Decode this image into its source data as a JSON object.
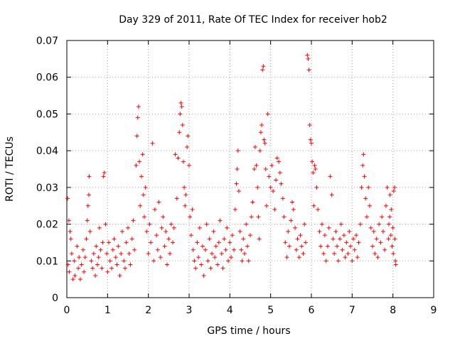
{
  "chart_data": {
    "type": "scatter",
    "title": "Day 329 of 2011, Rate Of TEC Index for receiver hob2",
    "xlabel": "GPS time / hours",
    "ylabel": "ROTI / TECUs",
    "xlim": [
      0,
      9
    ],
    "ylim": [
      0,
      0.07
    ],
    "xticks": [
      "0",
      "1",
      "2",
      "3",
      "4",
      "5",
      "6",
      "7",
      "8",
      "9"
    ],
    "yticks": [
      "0",
      "0.01",
      "0.02",
      "0.03",
      "0.04",
      "0.05",
      "0.06",
      "0.07"
    ],
    "grid": true,
    "marker": "+",
    "color": "#ff0000",
    "points": [
      [
        0.02,
        0.027
      ],
      [
        0.05,
        0.021
      ],
      [
        0.08,
        0.018
      ],
      [
        0.1,
        0.016
      ],
      [
        0.03,
        0.009
      ],
      [
        0.06,
        0.007
      ],
      [
        0.12,
        0.012
      ],
      [
        0.15,
        0.005
      ],
      [
        0.18,
        0.01
      ],
      [
        0.2,
        0.006
      ],
      [
        0.25,
        0.014
      ],
      [
        0.28,
        0.008
      ],
      [
        0.3,
        0.011
      ],
      [
        0.33,
        0.005
      ],
      [
        0.36,
        0.009
      ],
      [
        0.4,
        0.013
      ],
      [
        0.42,
        0.007
      ],
      [
        0.45,
        0.011
      ],
      [
        0.48,
        0.016
      ],
      [
        0.5,
        0.021
      ],
      [
        0.52,
        0.025
      ],
      [
        0.54,
        0.028
      ],
      [
        0.55,
        0.033
      ],
      [
        0.57,
        0.018
      ],
      [
        0.6,
        0.01
      ],
      [
        0.63,
        0.008
      ],
      [
        0.66,
        0.012
      ],
      [
        0.7,
        0.006
      ],
      [
        0.72,
        0.014
      ],
      [
        0.75,
        0.009
      ],
      [
        0.78,
        0.011
      ],
      [
        0.8,
        0.019
      ],
      [
        0.83,
        0.013
      ],
      [
        0.86,
        0.008
      ],
      [
        0.88,
        0.015
      ],
      [
        0.9,
        0.033
      ],
      [
        0.92,
        0.034
      ],
      [
        0.95,
        0.02
      ],
      [
        0.98,
        0.012
      ],
      [
        1.0,
        0.007
      ],
      [
        1.03,
        0.015
      ],
      [
        1.06,
        0.01
      ],
      [
        1.1,
        0.008
      ],
      [
        1.13,
        0.013
      ],
      [
        1.16,
        0.016
      ],
      [
        1.2,
        0.011
      ],
      [
        1.23,
        0.009
      ],
      [
        1.26,
        0.014
      ],
      [
        1.3,
        0.006
      ],
      [
        1.33,
        0.012
      ],
      [
        1.36,
        0.018
      ],
      [
        1.4,
        0.01
      ],
      [
        1.43,
        0.008
      ],
      [
        1.46,
        0.015
      ],
      [
        1.5,
        0.019
      ],
      [
        1.53,
        0.012
      ],
      [
        1.56,
        0.009
      ],
      [
        1.6,
        0.016
      ],
      [
        1.63,
        0.021
      ],
      [
        1.66,
        0.013
      ],
      [
        1.7,
        0.036
      ],
      [
        1.72,
        0.044
      ],
      [
        1.74,
        0.049
      ],
      [
        1.76,
        0.052
      ],
      [
        1.78,
        0.037
      ],
      [
        1.8,
        0.025
      ],
      [
        1.83,
        0.033
      ],
      [
        1.86,
        0.039
      ],
      [
        1.88,
        0.028
      ],
      [
        1.9,
        0.022
      ],
      [
        1.93,
        0.03
      ],
      [
        1.96,
        0.018
      ],
      [
        2.0,
        0.012
      ],
      [
        2.03,
        0.02
      ],
      [
        2.06,
        0.015
      ],
      [
        2.1,
        0.042
      ],
      [
        2.13,
        0.01
      ],
      [
        2.16,
        0.024
      ],
      [
        2.2,
        0.017
      ],
      [
        2.23,
        0.013
      ],
      [
        2.26,
        0.026
      ],
      [
        2.3,
        0.011
      ],
      [
        2.33,
        0.019
      ],
      [
        2.36,
        0.022
      ],
      [
        2.4,
        0.014
      ],
      [
        2.43,
        0.018
      ],
      [
        2.46,
        0.009
      ],
      [
        2.5,
        0.016
      ],
      [
        2.53,
        0.012
      ],
      [
        2.56,
        0.02
      ],
      [
        2.6,
        0.015
      ],
      [
        2.63,
        0.019
      ],
      [
        2.66,
        0.039
      ],
      [
        2.7,
        0.027
      ],
      [
        2.73,
        0.038
      ],
      [
        2.76,
        0.045
      ],
      [
        2.78,
        0.05
      ],
      [
        2.8,
        0.053
      ],
      [
        2.82,
        0.052
      ],
      [
        2.84,
        0.047
      ],
      [
        2.86,
        0.037
      ],
      [
        2.88,
        0.03
      ],
      [
        2.9,
        0.025
      ],
      [
        2.92,
        0.028
      ],
      [
        2.95,
        0.041
      ],
      [
        2.97,
        0.044
      ],
      [
        3.0,
        0.036
      ],
      [
        3.02,
        0.022
      ],
      [
        3.05,
        0.017
      ],
      [
        3.08,
        0.024
      ],
      [
        3.1,
        0.013
      ],
      [
        3.13,
        0.01
      ],
      [
        3.16,
        0.008
      ],
      [
        3.2,
        0.015
      ],
      [
        3.23,
        0.011
      ],
      [
        3.26,
        0.019
      ],
      [
        3.3,
        0.009
      ],
      [
        3.33,
        0.014
      ],
      [
        3.36,
        0.006
      ],
      [
        3.4,
        0.013
      ],
      [
        3.43,
        0.02
      ],
      [
        3.46,
        0.01
      ],
      [
        3.5,
        0.016
      ],
      [
        3.53,
        0.008
      ],
      [
        3.56,
        0.012
      ],
      [
        3.6,
        0.018
      ],
      [
        3.63,
        0.011
      ],
      [
        3.66,
        0.014
      ],
      [
        3.7,
        0.009
      ],
      [
        3.73,
        0.015
      ],
      [
        3.76,
        0.021
      ],
      [
        3.8,
        0.012
      ],
      [
        3.83,
        0.008
      ],
      [
        3.86,
        0.016
      ],
      [
        3.9,
        0.013
      ],
      [
        3.93,
        0.019
      ],
      [
        3.96,
        0.01
      ],
      [
        4.0,
        0.015
      ],
      [
        4.03,
        0.011
      ],
      [
        4.06,
        0.017
      ],
      [
        4.1,
        0.013
      ],
      [
        4.13,
        0.024
      ],
      [
        4.16,
        0.031
      ],
      [
        4.18,
        0.035
      ],
      [
        4.2,
        0.04
      ],
      [
        4.22,
        0.029
      ],
      [
        4.25,
        0.018
      ],
      [
        4.28,
        0.013
      ],
      [
        4.3,
        0.01
      ],
      [
        4.33,
        0.016
      ],
      [
        4.36,
        0.012
      ],
      [
        4.4,
        0.02
      ],
      [
        4.43,
        0.014
      ],
      [
        4.46,
        0.01
      ],
      [
        4.5,
        0.017
      ],
      [
        4.53,
        0.022
      ],
      [
        4.56,
        0.026
      ],
      [
        4.6,
        0.035
      ],
      [
        4.62,
        0.041
      ],
      [
        4.65,
        0.036
      ],
      [
        4.68,
        0.03
      ],
      [
        4.7,
        0.022
      ],
      [
        4.72,
        0.016
      ],
      [
        4.74,
        0.04
      ],
      [
        4.76,
        0.045
      ],
      [
        4.78,
        0.047
      ],
      [
        4.8,
        0.062
      ],
      [
        4.82,
        0.063
      ],
      [
        4.84,
        0.043
      ],
      [
        4.86,
        0.042
      ],
      [
        4.88,
        0.035
      ],
      [
        4.9,
        0.025
      ],
      [
        4.93,
        0.05
      ],
      [
        4.96,
        0.033
      ],
      [
        5.0,
        0.03
      ],
      [
        5.03,
        0.036
      ],
      [
        5.06,
        0.029
      ],
      [
        5.1,
        0.024
      ],
      [
        5.13,
        0.032
      ],
      [
        5.16,
        0.038
      ],
      [
        5.2,
        0.037
      ],
      [
        5.23,
        0.034
      ],
      [
        5.26,
        0.031
      ],
      [
        5.3,
        0.027
      ],
      [
        5.33,
        0.022
      ],
      [
        5.36,
        0.015
      ],
      [
        5.4,
        0.011
      ],
      [
        5.43,
        0.018
      ],
      [
        5.46,
        0.014
      ],
      [
        5.5,
        0.021
      ],
      [
        5.53,
        0.026
      ],
      [
        5.56,
        0.024
      ],
      [
        5.6,
        0.019
      ],
      [
        5.63,
        0.013
      ],
      [
        5.66,
        0.016
      ],
      [
        5.7,
        0.011
      ],
      [
        5.73,
        0.017
      ],
      [
        5.76,
        0.014
      ],
      [
        5.8,
        0.012
      ],
      [
        5.83,
        0.02
      ],
      [
        5.86,
        0.015
      ],
      [
        5.9,
        0.066
      ],
      [
        5.92,
        0.065
      ],
      [
        5.94,
        0.062
      ],
      [
        5.96,
        0.047
      ],
      [
        5.98,
        0.043
      ],
      [
        6.0,
        0.042
      ],
      [
        6.02,
        0.037
      ],
      [
        6.04,
        0.034
      ],
      [
        6.06,
        0.025
      ],
      [
        6.08,
        0.036
      ],
      [
        6.1,
        0.035
      ],
      [
        6.13,
        0.03
      ],
      [
        6.16,
        0.024
      ],
      [
        6.2,
        0.018
      ],
      [
        6.23,
        0.014
      ],
      [
        6.26,
        0.02
      ],
      [
        6.3,
        0.012
      ],
      [
        6.33,
        0.017
      ],
      [
        6.36,
        0.01
      ],
      [
        6.4,
        0.014
      ],
      [
        6.43,
        0.019
      ],
      [
        6.46,
        0.033
      ],
      [
        6.5,
        0.028
      ],
      [
        6.53,
        0.016
      ],
      [
        6.56,
        0.012
      ],
      [
        6.6,
        0.018
      ],
      [
        6.63,
        0.014
      ],
      [
        6.66,
        0.01
      ],
      [
        6.7,
        0.016
      ],
      [
        6.73,
        0.02
      ],
      [
        6.76,
        0.013
      ],
      [
        6.8,
        0.017
      ],
      [
        6.83,
        0.011
      ],
      [
        6.86,
        0.015
      ],
      [
        6.9,
        0.012
      ],
      [
        6.93,
        0.018
      ],
      [
        6.96,
        0.014
      ],
      [
        7.0,
        0.01
      ],
      [
        7.03,
        0.016
      ],
      [
        7.06,
        0.013
      ],
      [
        7.1,
        0.017
      ],
      [
        7.13,
        0.011
      ],
      [
        7.16,
        0.015
      ],
      [
        7.2,
        0.02
      ],
      [
        7.23,
        0.03
      ],
      [
        7.26,
        0.036
      ],
      [
        7.28,
        0.039
      ],
      [
        7.3,
        0.033
      ],
      [
        7.33,
        0.027
      ],
      [
        7.36,
        0.022
      ],
      [
        7.4,
        0.03
      ],
      [
        7.43,
        0.025
      ],
      [
        7.46,
        0.019
      ],
      [
        7.5,
        0.014
      ],
      [
        7.53,
        0.018
      ],
      [
        7.56,
        0.012
      ],
      [
        7.6,
        0.016
      ],
      [
        7.63,
        0.011
      ],
      [
        7.66,
        0.02
      ],
      [
        7.7,
        0.015
      ],
      [
        7.73,
        0.022
      ],
      [
        7.76,
        0.018
      ],
      [
        7.8,
        0.013
      ],
      [
        7.83,
        0.025
      ],
      [
        7.86,
        0.03
      ],
      [
        7.9,
        0.02
      ],
      [
        7.93,
        0.028
      ],
      [
        7.96,
        0.024
      ],
      [
        8.0,
        0.019
      ],
      [
        8.02,
        0.029
      ],
      [
        8.04,
        0.03
      ],
      [
        8.05,
        0.016
      ],
      [
        8.06,
        0.01
      ],
      [
        8.07,
        0.009
      ],
      [
        8.01,
        0.012
      ],
      [
        7.98,
        0.014
      ],
      [
        7.95,
        0.017
      ],
      [
        7.92,
        0.022
      ],
      [
        7.89,
        0.016
      ]
    ]
  }
}
